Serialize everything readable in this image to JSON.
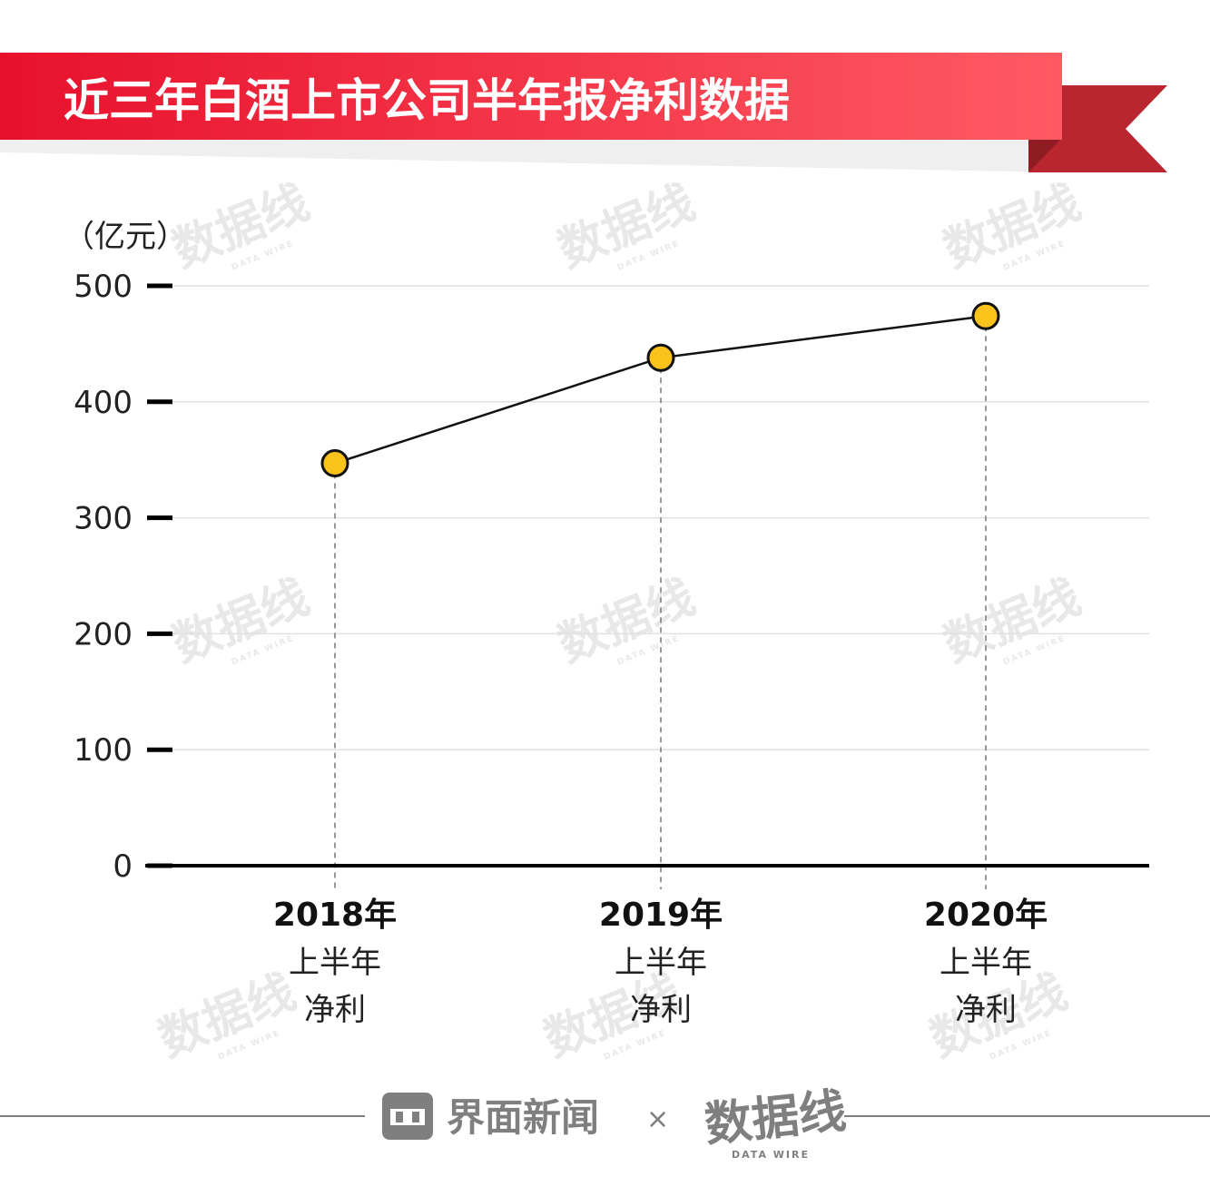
{
  "banner": {
    "title": "近三年白酒上市公司半年报净利数据",
    "gradient_start": "#e8112d",
    "gradient_end": "#ff5a63",
    "ribbon_color": "#b9262f",
    "ribbon_shadow": "#8f1c23"
  },
  "chart_data": {
    "type": "line",
    "unit_label": "（亿元）",
    "categories": [
      "2018年上半年净利",
      "2019年上半年净利",
      "2020年上半年净利"
    ],
    "category_labels": [
      {
        "year": "2018年",
        "line1": "上半年",
        "line2": "净利"
      },
      {
        "year": "2019年",
        "line1": "上半年",
        "line2": "净利"
      },
      {
        "year": "2020年",
        "line1": "上半年",
        "line2": "净利"
      }
    ],
    "series": [
      {
        "values": [
          347,
          438,
          474
        ]
      }
    ],
    "ylim": [
      0,
      500
    ],
    "yticks": [
      "0",
      "100",
      "200",
      "300",
      "400",
      "500"
    ],
    "grid": true,
    "marker_color": "#fbc21b"
  },
  "watermark": {
    "text": "数据线",
    "sub": "DATA WIRE"
  },
  "footer": {
    "brand": "界面新闻",
    "times": "×",
    "partner": "数据线",
    "partner_sub": "DATA WIRE",
    "gray": "#7f7f7f"
  }
}
